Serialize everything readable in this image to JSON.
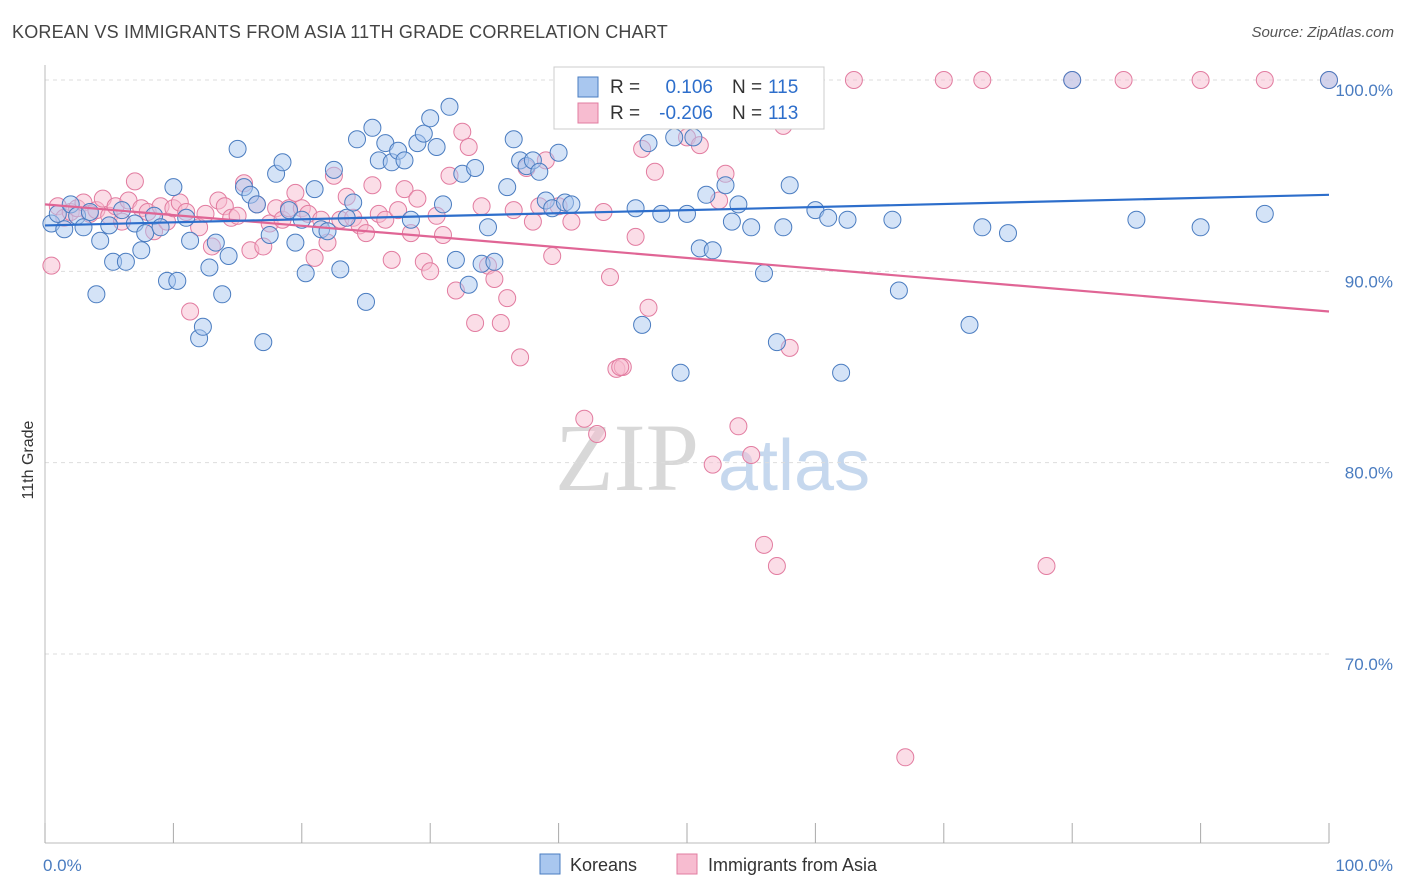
{
  "header": {
    "title": "KOREAN VS IMMIGRANTS FROM ASIA 11TH GRADE CORRELATION CHART",
    "source": "Source: ZipAtlas.com"
  },
  "watermark": {
    "zip": "ZIP",
    "atlas": "atlas"
  },
  "legend_box": {
    "rows": [
      {
        "r_label": "R =",
        "r_value": "0.106",
        "n_label": "N =",
        "n_value": "115"
      },
      {
        "r_label": "R =",
        "r_value": "-0.206",
        "n_label": "N =",
        "n_value": "113"
      }
    ]
  },
  "colors": {
    "koreans_fill": "#a9c7ef",
    "koreans_stroke": "#4a7cc0",
    "koreans_line": "#2d6ecb",
    "asia_fill": "#f7bcd0",
    "asia_stroke": "#e27ca0",
    "asia_line": "#e06595",
    "label_blue": "#4a7cc0"
  },
  "chart_data": {
    "type": "scatter",
    "title": "KOREAN VS IMMIGRANTS FROM ASIA 11TH GRADE CORRELATION CHART",
    "xlabel": "",
    "ylabel": "11th Grade",
    "xlim": [
      0,
      100
    ],
    "ylim": [
      60.5,
      101.5
    ],
    "x_tick_labels": [
      "0.0%",
      "100.0%"
    ],
    "y_ticks": [
      70,
      80,
      90,
      100
    ],
    "y_tick_labels": [
      "70.0%",
      "80.0%",
      "90.0%",
      "100.0%"
    ],
    "grid": "horizontal dashed",
    "legend_placement": "bottom-center",
    "series": [
      {
        "name": "Koreans",
        "r": 0.106,
        "n": 115,
        "trend": [
          [
            0,
            92.4
          ],
          [
            100,
            94.0
          ]
        ],
        "points": [
          [
            0.5,
            92.5
          ],
          [
            1,
            93.0
          ],
          [
            1.5,
            92.2
          ],
          [
            2,
            93.5
          ],
          [
            2.5,
            92.9
          ],
          [
            3,
            92.3
          ],
          [
            3.5,
            93.1
          ],
          [
            4,
            88.8
          ],
          [
            4.3,
            91.6
          ],
          [
            5,
            92.4
          ],
          [
            5.3,
            90.5
          ],
          [
            6,
            93.2
          ],
          [
            6.3,
            90.5
          ],
          [
            7,
            92.5
          ],
          [
            7.5,
            91.1
          ],
          [
            7.8,
            92.0
          ],
          [
            8.5,
            92.9
          ],
          [
            9,
            92.3
          ],
          [
            9.5,
            89.5
          ],
          [
            10,
            94.4
          ],
          [
            10.3,
            89.5
          ],
          [
            11,
            92.8
          ],
          [
            11.3,
            91.6
          ],
          [
            12,
            86.5
          ],
          [
            12.3,
            87.1
          ],
          [
            12.8,
            90.2
          ],
          [
            13.3,
            91.5
          ],
          [
            13.8,
            88.8
          ],
          [
            14.3,
            90.8
          ],
          [
            15,
            96.4
          ],
          [
            15.5,
            94.4
          ],
          [
            16,
            94.0
          ],
          [
            16.5,
            93.5
          ],
          [
            17,
            86.3
          ],
          [
            17.5,
            91.9
          ],
          [
            18,
            95.1
          ],
          [
            18.5,
            95.7
          ],
          [
            19,
            93.2
          ],
          [
            19.5,
            91.5
          ],
          [
            20,
            92.7
          ],
          [
            20.3,
            89.9
          ],
          [
            21,
            94.3
          ],
          [
            21.5,
            92.2
          ],
          [
            22,
            92.1
          ],
          [
            22.5,
            95.3
          ],
          [
            23,
            90.1
          ],
          [
            23.5,
            92.8
          ],
          [
            24,
            93.6
          ],
          [
            24.3,
            96.9
          ],
          [
            25,
            88.4
          ],
          [
            25.5,
            97.5
          ],
          [
            26,
            95.8
          ],
          [
            26.5,
            96.7
          ],
          [
            27,
            95.7
          ],
          [
            27.5,
            96.3
          ],
          [
            28,
            95.8
          ],
          [
            28.5,
            92.7
          ],
          [
            29,
            96.7
          ],
          [
            29.5,
            97.2
          ],
          [
            30,
            98.0
          ],
          [
            30.5,
            96.5
          ],
          [
            31,
            93.5
          ],
          [
            31.5,
            98.6
          ],
          [
            32,
            90.6
          ],
          [
            32.5,
            95.1
          ],
          [
            33,
            89.3
          ],
          [
            33.5,
            95.4
          ],
          [
            34,
            90.4
          ],
          [
            34.5,
            92.3
          ],
          [
            35,
            90.5
          ],
          [
            36,
            94.4
          ],
          [
            36.5,
            96.9
          ],
          [
            37,
            95.8
          ],
          [
            37.5,
            95.5
          ],
          [
            38,
            95.8
          ],
          [
            38.5,
            95.2
          ],
          [
            39,
            93.7
          ],
          [
            39.5,
            93.3
          ],
          [
            40,
            96.2
          ],
          [
            40.5,
            93.6
          ],
          [
            41,
            93.5
          ],
          [
            42,
            100.0
          ],
          [
            46,
            93.3
          ],
          [
            46.5,
            87.2
          ],
          [
            47,
            96.7
          ],
          [
            48,
            93.0
          ],
          [
            49,
            97.0
          ],
          [
            49.5,
            84.7
          ],
          [
            50,
            93.0
          ],
          [
            50.5,
            97.0
          ],
          [
            51,
            91.2
          ],
          [
            51.5,
            94.0
          ],
          [
            52,
            91.1
          ],
          [
            53,
            94.5
          ],
          [
            53.5,
            92.6
          ],
          [
            54,
            93.5
          ],
          [
            55,
            92.3
          ],
          [
            56,
            89.9
          ],
          [
            57,
            86.3
          ],
          [
            57.5,
            92.3
          ],
          [
            58,
            94.5
          ],
          [
            60,
            93.2
          ],
          [
            61,
            92.8
          ],
          [
            62,
            84.7
          ],
          [
            62.5,
            92.7
          ],
          [
            66,
            92.7
          ],
          [
            66.5,
            89.0
          ],
          [
            72,
            87.2
          ],
          [
            73,
            92.3
          ],
          [
            75,
            92.0
          ],
          [
            80,
            100.0
          ],
          [
            85,
            92.7
          ],
          [
            90,
            92.3
          ],
          [
            95,
            93.0
          ],
          [
            100,
            100.0
          ]
        ]
      },
      {
        "name": "Immigrants from Asia",
        "r": -0.206,
        "n": 113,
        "trend": [
          [
            0,
            93.5
          ],
          [
            100,
            87.9
          ]
        ],
        "points": [
          [
            0.5,
            90.3
          ],
          [
            1,
            93.4
          ],
          [
            1.5,
            92.8
          ],
          [
            2,
            93.1
          ],
          [
            2.5,
            93.3
          ],
          [
            3,
            93.6
          ],
          [
            3.5,
            93.0
          ],
          [
            4,
            93.2
          ],
          [
            4.5,
            93.8
          ],
          [
            5,
            92.9
          ],
          [
            5.5,
            93.4
          ],
          [
            6,
            92.6
          ],
          [
            6.5,
            93.7
          ],
          [
            7,
            94.7
          ],
          [
            7.5,
            93.3
          ],
          [
            8,
            93.1
          ],
          [
            8.5,
            92.1
          ],
          [
            9,
            93.4
          ],
          [
            9.5,
            92.6
          ],
          [
            10,
            93.3
          ],
          [
            10.5,
            93.6
          ],
          [
            11,
            93.1
          ],
          [
            11.3,
            87.9
          ],
          [
            12,
            92.3
          ],
          [
            12.5,
            93.0
          ],
          [
            13,
            91.3
          ],
          [
            13.5,
            93.7
          ],
          [
            14,
            93.4
          ],
          [
            14.5,
            92.8
          ],
          [
            15,
            92.9
          ],
          [
            15.5,
            94.6
          ],
          [
            16,
            91.1
          ],
          [
            16.5,
            93.5
          ],
          [
            17,
            91.3
          ],
          [
            17.5,
            92.5
          ],
          [
            18,
            93.3
          ],
          [
            18.5,
            92.7
          ],
          [
            19,
            93.3
          ],
          [
            19.5,
            94.1
          ],
          [
            20,
            93.3
          ],
          [
            20.5,
            93.0
          ],
          [
            21,
            90.7
          ],
          [
            21.5,
            92.7
          ],
          [
            22,
            91.5
          ],
          [
            22.5,
            95.0
          ],
          [
            23,
            92.7
          ],
          [
            23.5,
            93.9
          ],
          [
            24,
            92.8
          ],
          [
            24.5,
            92.4
          ],
          [
            25,
            92.0
          ],
          [
            25.5,
            94.5
          ],
          [
            26,
            93.0
          ],
          [
            26.5,
            92.7
          ],
          [
            27,
            90.6
          ],
          [
            27.5,
            93.2
          ],
          [
            28,
            94.3
          ],
          [
            28.5,
            92.0
          ],
          [
            29,
            93.8
          ],
          [
            29.5,
            90.5
          ],
          [
            30,
            90.0
          ],
          [
            30.5,
            92.9
          ],
          [
            31,
            91.9
          ],
          [
            31.5,
            95.0
          ],
          [
            32,
            89.0
          ],
          [
            32.5,
            97.3
          ],
          [
            33,
            96.5
          ],
          [
            33.5,
            87.3
          ],
          [
            34,
            93.4
          ],
          [
            34.5,
            90.3
          ],
          [
            35,
            89.6
          ],
          [
            35.5,
            87.3
          ],
          [
            36,
            88.6
          ],
          [
            36.5,
            93.2
          ],
          [
            37,
            85.5
          ],
          [
            37.5,
            95.4
          ],
          [
            38,
            92.6
          ],
          [
            38.5,
            93.4
          ],
          [
            39,
            95.8
          ],
          [
            39.5,
            90.8
          ],
          [
            40,
            93.4
          ],
          [
            41,
            92.6
          ],
          [
            42,
            82.3
          ],
          [
            43,
            81.5
          ],
          [
            43.5,
            93.1
          ],
          [
            44,
            89.7
          ],
          [
            44.5,
            84.9
          ],
          [
            45,
            85.0
          ],
          [
            46,
            91.8
          ],
          [
            46.5,
            96.4
          ],
          [
            47,
            88.1
          ],
          [
            47.5,
            95.2
          ],
          [
            50,
            97.0
          ],
          [
            51,
            96.6
          ],
          [
            52,
            79.9
          ],
          [
            53,
            95.1
          ],
          [
            54,
            81.9
          ],
          [
            55,
            80.4
          ],
          [
            56,
            75.7
          ],
          [
            57,
            74.6
          ],
          [
            58,
            86.0
          ],
          [
            63,
            100.0
          ],
          [
            67,
            64.6
          ],
          [
            70,
            100.0
          ],
          [
            73,
            100.0
          ],
          [
            78,
            74.6
          ],
          [
            80,
            100.0
          ],
          [
            84,
            100.0
          ],
          [
            90,
            100.0
          ],
          [
            95,
            100.0
          ],
          [
            100,
            100.0
          ],
          [
            44.8,
            85.0
          ],
          [
            52.5,
            93.7
          ],
          [
            57.5,
            97.6
          ]
        ]
      }
    ]
  }
}
